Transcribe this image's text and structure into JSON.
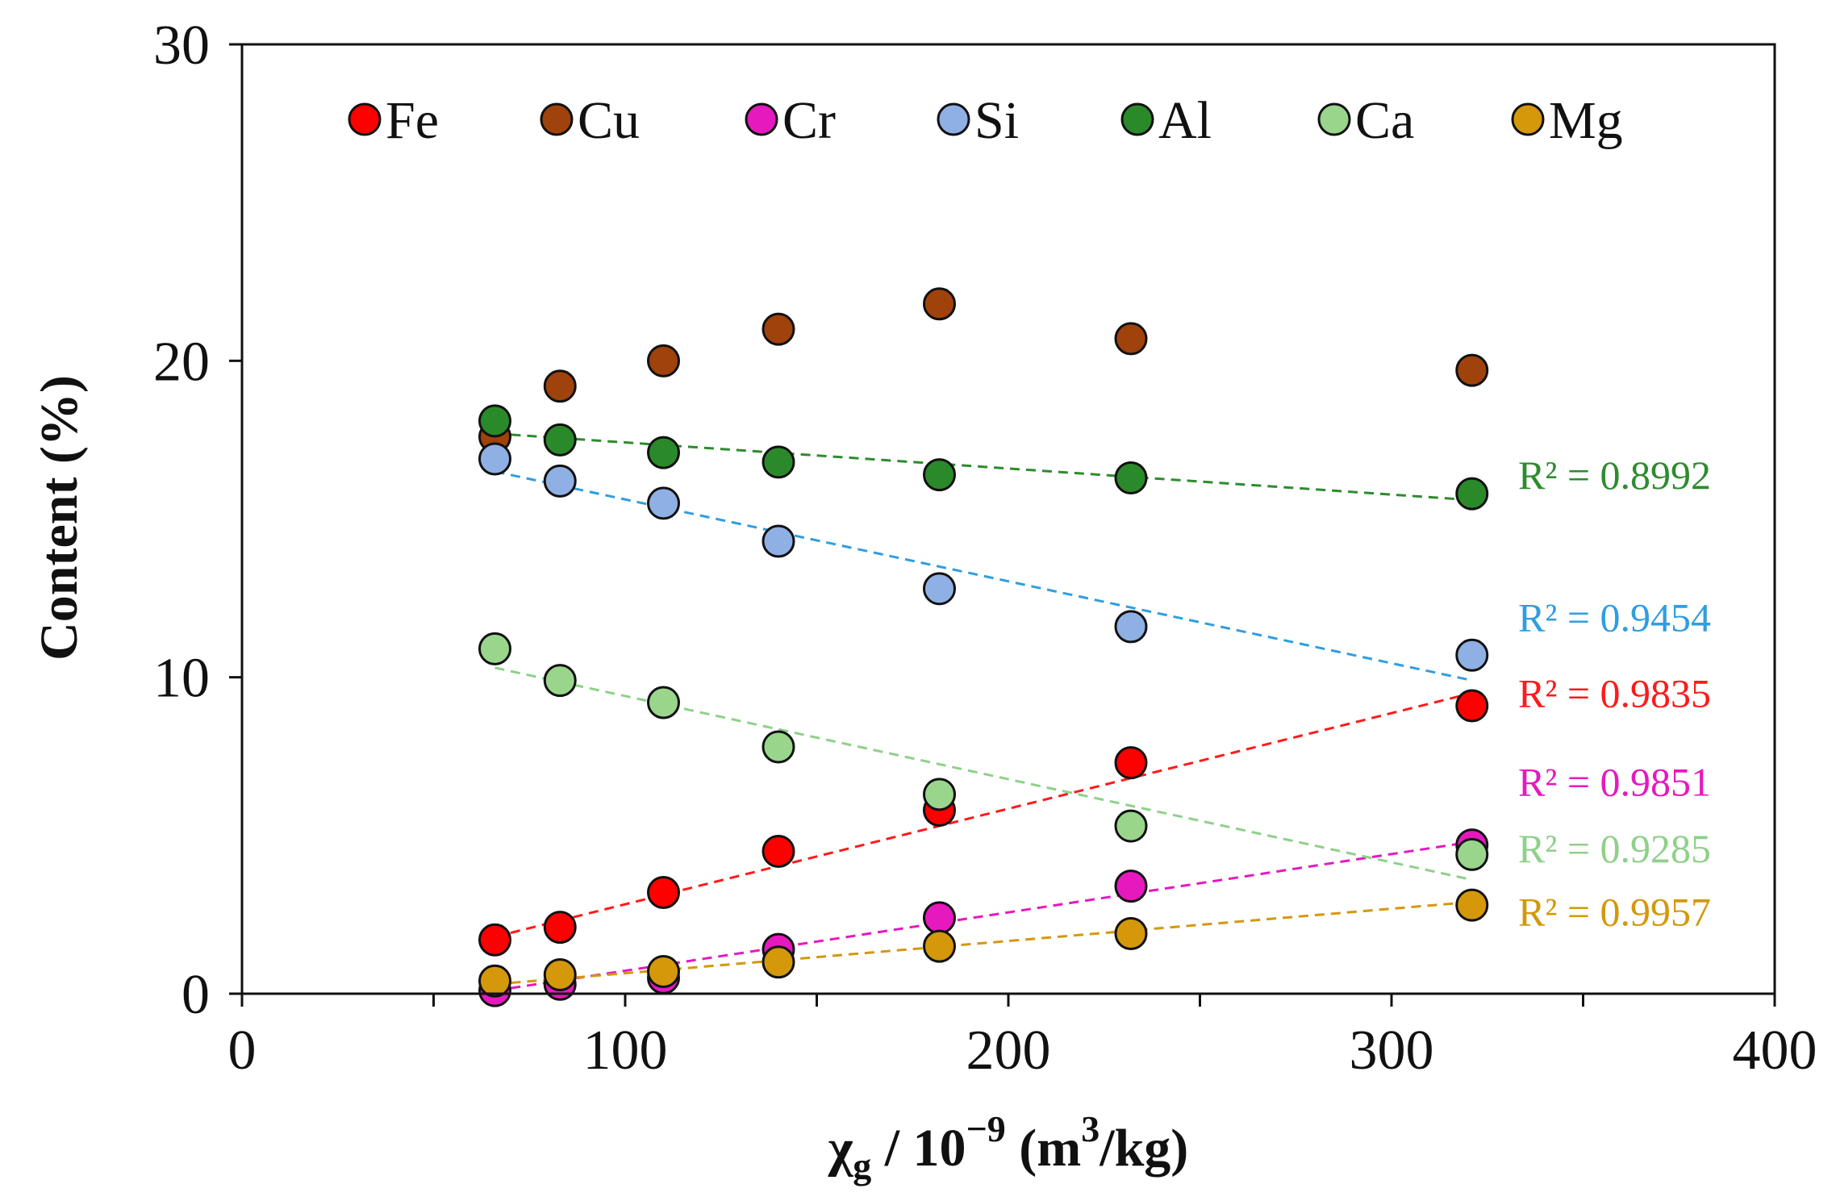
{
  "chart_data": {
    "type": "scatter",
    "title": "",
    "xlabel": "χg / 10−9 (m3/kg)",
    "xlabel_parts": {
      "symbol": "χ",
      "subscript": "g",
      "middle": " / 10",
      "exponent": "−9",
      "unit_open": " (m",
      "unit_exponent": "3",
      "unit_close": "/kg)"
    },
    "ylabel": "Content (%)",
    "xlim": [
      0,
      400
    ],
    "ylim": [
      0,
      30
    ],
    "xticks": [
      0,
      100,
      200,
      300,
      400
    ],
    "xticks_minor": [
      50,
      150,
      250,
      350
    ],
    "yticks": [
      0,
      10,
      20,
      30
    ],
    "grid": false,
    "legend_position": "top",
    "x": [
      66,
      83,
      110,
      140,
      182,
      232,
      321
    ],
    "series": [
      {
        "name": "Fe",
        "color": "#ff0000",
        "values": [
          1.7,
          2.1,
          3.2,
          4.5,
          5.8,
          7.3,
          9.1
        ]
      },
      {
        "name": "Cu",
        "color": "#a0420b",
        "values": [
          17.6,
          19.2,
          20.0,
          21.0,
          21.8,
          20.7,
          19.7
        ]
      },
      {
        "name": "Cr",
        "color": "#e619bf",
        "values": [
          0.1,
          0.3,
          0.5,
          1.4,
          2.4,
          3.4,
          4.7
        ]
      },
      {
        "name": "Si",
        "color": "#8fb0e5",
        "values": [
          16.9,
          16.2,
          15.5,
          14.3,
          12.8,
          11.6,
          10.7
        ]
      },
      {
        "name": "Al",
        "color": "#2a8a2a",
        "values": [
          18.1,
          17.5,
          17.1,
          16.8,
          16.4,
          16.3,
          15.8
        ]
      },
      {
        "name": "Ca",
        "color": "#99d68c",
        "values": [
          10.9,
          9.9,
          9.2,
          7.8,
          6.3,
          5.3,
          4.4
        ]
      },
      {
        "name": "Mg",
        "color": "#d4980a",
        "values": [
          0.4,
          0.6,
          0.7,
          1.0,
          1.5,
          1.9,
          2.8
        ]
      }
    ],
    "trendlines": [
      {
        "series": "Al",
        "color": "#2e8b2e",
        "x": [
          66,
          321
        ],
        "y": [
          17.7,
          15.6
        ],
        "r2_label": "R² = 0.8992",
        "label_value": 15.6
      },
      {
        "series": "Si",
        "color": "#2f9ee0",
        "x": [
          66,
          321
        ],
        "y": [
          16.5,
          9.9
        ],
        "r2_label": "R² = 0.9454",
        "label_value": 11.1
      },
      {
        "series": "Fe",
        "color": "#ff1a1a",
        "x": [
          66,
          321
        ],
        "y": [
          1.8,
          9.5
        ],
        "r2_label": "R² = 0.9835",
        "label_value": 8.7
      },
      {
        "series": "Cr",
        "color": "#e619bf",
        "x": [
          66,
          321
        ],
        "y": [
          0.1,
          4.8
        ],
        "r2_label": "R² = 0.9851",
        "label_value": 5.9
      },
      {
        "series": "Ca",
        "color": "#8fd08a",
        "x": [
          66,
          321
        ],
        "y": [
          10.3,
          3.6
        ],
        "r2_label": "R² = 0.9285",
        "label_value": 3.8
      },
      {
        "series": "Mg",
        "color": "#d4980a",
        "x": [
          66,
          321
        ],
        "y": [
          0.3,
          2.9
        ],
        "r2_label": "R² = 0.9957",
        "label_value": 1.8
      }
    ]
  }
}
